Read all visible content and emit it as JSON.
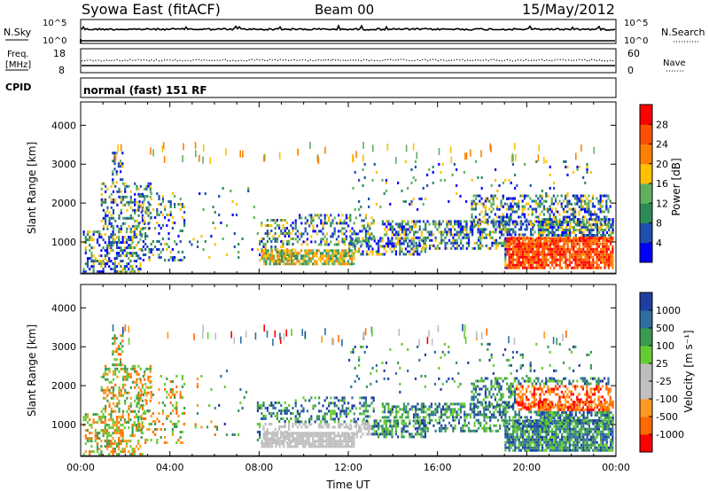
{
  "header": {
    "station": "Syowa East (fitACF)",
    "beam": "Beam 00",
    "date": "15/May/2012"
  },
  "nsky_panel": {
    "left_label": "N.Sky",
    "right_label": "N.Search",
    "left_ticks": [
      "10^5",
      "10^0"
    ],
    "right_ticks": [
      "10^5",
      "10^0"
    ]
  },
  "freq_panel": {
    "left_label_1": "Freq.",
    "left_label_2": "[MHz]",
    "right_label": "Nave",
    "left_ticks": [
      "18",
      "8"
    ],
    "right_ticks": [
      "60",
      "0"
    ]
  },
  "cpid": {
    "label": "CPID",
    "mode": "normal (fast) 151 RF"
  },
  "colors": {
    "power": [
      "#0000ff",
      "#1f4fb0",
      "#2e8b57",
      "#60b060",
      "#ffc000",
      "#ff8000",
      "#ff5000",
      "#ff0000"
    ],
    "velocity": [
      "#ff0000",
      "#ff6a00",
      "#ff9a20",
      "#c0c0c0",
      "#bdbdbd",
      "#66cc33",
      "#3a9a50",
      "#2f6fa0",
      "#1e3fa0"
    ]
  },
  "chart_data": [
    {
      "type": "heatmap",
      "name": "power",
      "ylabel": "Slant Range [km]",
      "ylim": [
        180,
        4600
      ],
      "yticks": [
        1000,
        2000,
        3000,
        4000
      ],
      "xlim": [
        0,
        24
      ],
      "colorbar": {
        "label": "Power [dB]",
        "min": 0,
        "max": 32,
        "ticks": [
          4,
          8,
          12,
          16,
          20,
          24,
          28
        ]
      }
    },
    {
      "type": "heatmap",
      "name": "velocity",
      "ylabel": "Slant Range [km]",
      "xlabel": "Time UT",
      "ylim": [
        180,
        4600
      ],
      "yticks": [
        1000,
        2000,
        3000,
        4000
      ],
      "xlim": [
        0,
        24
      ],
      "xticks": [
        "00:00",
        "04:00",
        "08:00",
        "12:00",
        "16:00",
        "20:00",
        "00:00"
      ],
      "colorbar": {
        "label": "Velocity [m s⁻¹]",
        "ticks": [
          "1000",
          "500",
          "100",
          "25",
          "-25",
          "-100",
          "-500",
          "-1000"
        ]
      }
    }
  ]
}
